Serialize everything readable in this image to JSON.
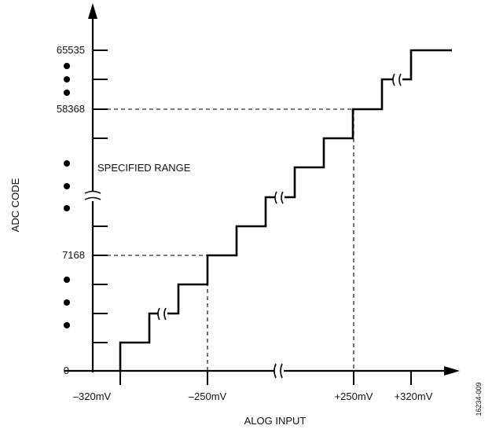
{
  "figure": {
    "y_axis_label": "ADC CODE",
    "x_axis_label": "ALOG INPUT",
    "annotation": "SPECIFIED RANGE",
    "figure_id": "16234-009",
    "y_tick_labels": [
      "65535",
      "58368",
      "7168",
      "0"
    ],
    "x_tick_labels": [
      "–320mV",
      "–250mV",
      "+250mV",
      "+320mV"
    ]
  }
}
